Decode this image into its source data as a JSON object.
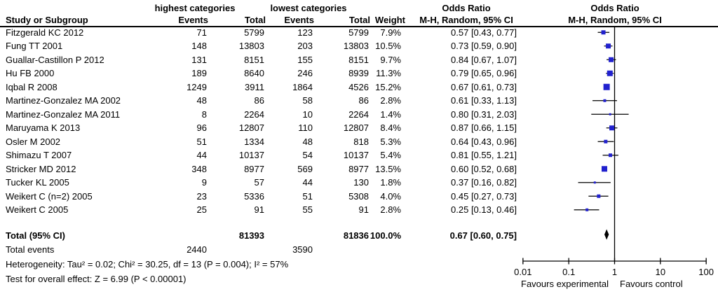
{
  "header": {
    "study_col": "Study or Subgroup",
    "group_highest": "highest categories",
    "group_lowest": "lowest categories",
    "events_col": "Events",
    "total_col": "Total",
    "weight_col": "Weight",
    "or_title": "Odds Ratio",
    "or_subtitle": "M-H, Random, 95% CI"
  },
  "chart_data": {
    "type": "forest",
    "effect_measure": "Odds Ratio",
    "method_label": "M-H, Random, 95% CI",
    "x_scale": "log",
    "x_ticks": [
      "0.01",
      "0.1",
      "1",
      "10",
      "100"
    ],
    "x_axis_left_label": "Favours experimental",
    "x_axis_right_label": "Favours control",
    "studies": [
      {
        "name": "Fitzgerald KC 2012",
        "events1": 71,
        "total1": 5799,
        "events2": 123,
        "total2": 5799,
        "weight": "7.9%",
        "weight_pct": 7.9,
        "or": 0.57,
        "ci_low": 0.43,
        "ci_high": 0.77,
        "label": "0.57 [0.43, 0.77]"
      },
      {
        "name": "Fung TT 2001",
        "events1": 148,
        "total1": 13803,
        "events2": 203,
        "total2": 13803,
        "weight": "10.5%",
        "weight_pct": 10.5,
        "or": 0.73,
        "ci_low": 0.59,
        "ci_high": 0.9,
        "label": "0.73 [0.59, 0.90]"
      },
      {
        "name": "Guallar-Castillon P 2012",
        "events1": 131,
        "total1": 8151,
        "events2": 155,
        "total2": 8151,
        "weight": "9.7%",
        "weight_pct": 9.7,
        "or": 0.84,
        "ci_low": 0.67,
        "ci_high": 1.07,
        "label": "0.84 [0.67, 1.07]"
      },
      {
        "name": "Hu FB 2000",
        "events1": 189,
        "total1": 8640,
        "events2": 246,
        "total2": 8939,
        "weight": "11.3%",
        "weight_pct": 11.3,
        "or": 0.79,
        "ci_low": 0.65,
        "ci_high": 0.96,
        "label": "0.79 [0.65, 0.96]"
      },
      {
        "name": "Iqbal R 2008",
        "events1": 1249,
        "total1": 3911,
        "events2": 1864,
        "total2": 4526,
        "weight": "15.2%",
        "weight_pct": 15.2,
        "or": 0.67,
        "ci_low": 0.61,
        "ci_high": 0.73,
        "label": "0.67 [0.61, 0.73]"
      },
      {
        "name": "Martinez-Gonzalez MA 2002",
        "events1": 48,
        "total1": 86,
        "events2": 58,
        "total2": 86,
        "weight": "2.8%",
        "weight_pct": 2.8,
        "or": 0.61,
        "ci_low": 0.33,
        "ci_high": 1.13,
        "label": "0.61 [0.33, 1.13]"
      },
      {
        "name": "Martinez-Gonzalez MA 2011",
        "events1": 8,
        "total1": 2264,
        "events2": 10,
        "total2": 2264,
        "weight": "1.4%",
        "weight_pct": 1.4,
        "or": 0.8,
        "ci_low": 0.31,
        "ci_high": 2.03,
        "label": "0.80 [0.31, 2.03]"
      },
      {
        "name": "Maruyama K 2013",
        "events1": 96,
        "total1": 12807,
        "events2": 110,
        "total2": 12807,
        "weight": "8.4%",
        "weight_pct": 8.4,
        "or": 0.87,
        "ci_low": 0.66,
        "ci_high": 1.15,
        "label": "0.87 [0.66, 1.15]"
      },
      {
        "name": "Osler M 2002",
        "events1": 51,
        "total1": 1334,
        "events2": 48,
        "total2": 818,
        "weight": "5.3%",
        "weight_pct": 5.3,
        "or": 0.64,
        "ci_low": 0.43,
        "ci_high": 0.96,
        "label": "0.64 [0.43, 0.96]"
      },
      {
        "name": "Shimazu T 2007",
        "events1": 44,
        "total1": 10137,
        "events2": 54,
        "total2": 10137,
        "weight": "5.4%",
        "weight_pct": 5.4,
        "or": 0.81,
        "ci_low": 0.55,
        "ci_high": 1.21,
        "label": "0.81 [0.55, 1.21]"
      },
      {
        "name": "Stricker MD 2012",
        "events1": 348,
        "total1": 8977,
        "events2": 569,
        "total2": 8977,
        "weight": "13.5%",
        "weight_pct": 13.5,
        "or": 0.6,
        "ci_low": 0.52,
        "ci_high": 0.68,
        "label": "0.60 [0.52, 0.68]"
      },
      {
        "name": "Tucker KL 2005",
        "events1": 9,
        "total1": 57,
        "events2": 44,
        "total2": 130,
        "weight": "1.8%",
        "weight_pct": 1.8,
        "or": 0.37,
        "ci_low": 0.16,
        "ci_high": 0.82,
        "label": "0.37 [0.16, 0.82]"
      },
      {
        "name": "Weikert C (n=2) 2005",
        "events1": 23,
        "total1": 5336,
        "events2": 51,
        "total2": 5308,
        "weight": "4.0%",
        "weight_pct": 4.0,
        "or": 0.45,
        "ci_low": 0.27,
        "ci_high": 0.73,
        "label": "0.45 [0.27, 0.73]"
      },
      {
        "name": "Weikert C 2005",
        "events1": 25,
        "total1": 91,
        "events2": 55,
        "total2": 91,
        "weight": "2.8%",
        "weight_pct": 2.8,
        "or": 0.25,
        "ci_low": 0.13,
        "ci_high": 0.46,
        "label": "0.25 [0.13, 0.46]"
      }
    ],
    "total": {
      "name": "Total (95% CI)",
      "total1": 81393,
      "total2": 81836,
      "weight": "100.0%",
      "or": 0.67,
      "ci_low": 0.6,
      "ci_high": 0.75,
      "label": "0.67 [0.60, 0.75]"
    },
    "total_events": {
      "label": "Total events",
      "events1": 2440,
      "events2": 3590
    },
    "footnotes": {
      "heterogeneity": "Heterogeneity: Tau² = 0.02; Chi² = 30.25, df = 13 (P = 0.004); I² = 57%",
      "overall_effect": "Test for overall effect: Z = 6.99 (P < 0.00001)"
    }
  },
  "colors": {
    "marker_blue": "#2121ce",
    "diamond_black": "#000000",
    "line_black": "#000000",
    "background": "#ffffff",
    "text": "#000000"
  }
}
